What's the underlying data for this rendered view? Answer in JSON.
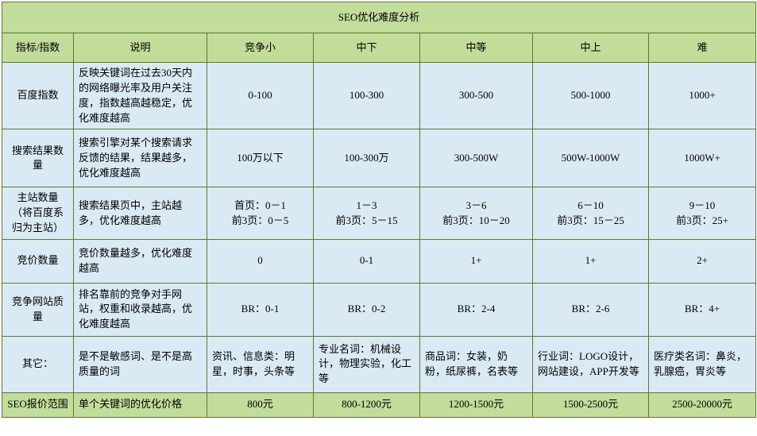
{
  "title": "SEO优化难度分析",
  "headers": [
    "指标/指数",
    "说明",
    "竞争小",
    "中下",
    "中等",
    "中上",
    "难"
  ],
  "rows": [
    {
      "name": "百度指数",
      "desc": "反映关键词在过去30天内的网络曝光率及用户关注度，指数越高越稳定，优化难度越高",
      "v": [
        "0-100",
        "100-300",
        "300-500",
        "500-1000",
        "1000+"
      ],
      "h": "h70"
    },
    {
      "name": "搜索结果数量",
      "desc": "搜索引擎对某个搜索请求反馈的结果，结果越多，优化难度越高",
      "v": [
        "100万以下",
        "100-300万",
        "300-500W",
        "500W-1000W",
        "1000W+"
      ],
      "h": "h64"
    },
    {
      "name": "主站数量（将百度系归为主站）",
      "desc": "搜索结果页中，主站越多，优化难度越高",
      "v": [
        "首页：0－1\n前3页：0－5",
        "1－3\n前3页：5－15",
        "3－6\n前3页：10－20",
        "6－10\n前3页：15－25",
        "9－10\n前3页：25+"
      ],
      "h": "h50"
    },
    {
      "name": "竞价数量",
      "desc": "竞价数量越多，优化难度越高",
      "v": [
        "0",
        "0-1",
        "1+",
        "1+",
        "2+"
      ],
      "h": "h46"
    },
    {
      "name": "竞争网站质量",
      "desc": "排名靠前的竞争对手网站，权重和收录越高，优化难度越高",
      "v": [
        "BR：0-1",
        "BR：0-2",
        "BR：2-4",
        "BR：2-6",
        "BR：4+"
      ],
      "h": "h58"
    }
  ],
  "other": {
    "name": "其它：",
    "desc": "是不是敏感词、是不是高质量的词",
    "v": [
      "资讯、信息类：明星，时事，头条等",
      "专业名词：机械设计，物理实验，化工等",
      "商品词：女装，奶粉，纸尿裤，名表等",
      "行业词：LOGO设计，网站建设，APP开发等",
      "医疗类名词：鼻炎，乳腺癌，胃炎等"
    ],
    "h": "h62"
  },
  "footer": {
    "name": "SEO报价范围",
    "desc": "单个关键词的优化价格",
    "v": [
      "800元",
      "800-1200元",
      "1200-1500元",
      "1500-2500元",
      "2500-20000元"
    ]
  }
}
